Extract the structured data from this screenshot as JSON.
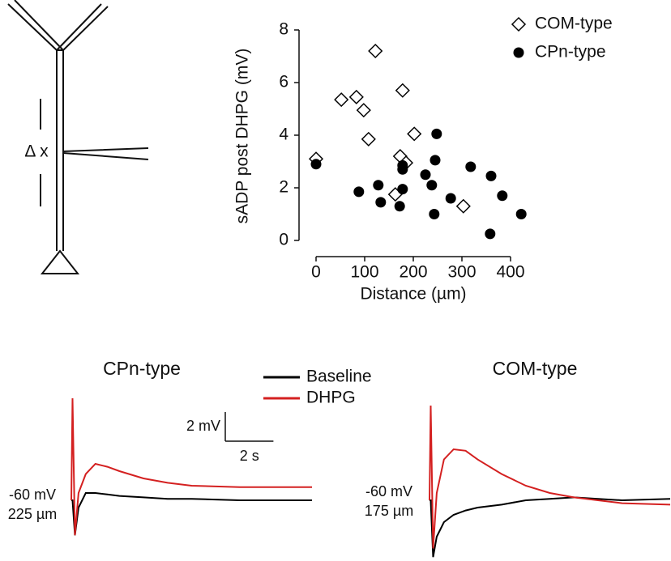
{
  "diagram": {
    "label": "Δ x"
  },
  "chart_data": [
    {
      "type": "scatter",
      "x_label": "Distance (µm)",
      "y_label": "sADP post DHPG (mV)",
      "xlim": [
        0,
        400
      ],
      "xticks": [
        0,
        100,
        200,
        300,
        400
      ],
      "ylim": [
        0,
        8
      ],
      "yticks": [
        0,
        2,
        4,
        6,
        8
      ],
      "legend": "top-right",
      "series": [
        {
          "name": "COM-type",
          "marker": "diamond",
          "color": "#000000",
          "x": [
            0,
            52,
            83,
            98,
            122,
            108,
            178,
            202,
            173,
            185,
            163,
            303
          ],
          "values": [
            3.1,
            5.35,
            5.45,
            4.95,
            7.2,
            3.85,
            5.7,
            4.05,
            3.2,
            2.95,
            1.75,
            1.3
          ]
        },
        {
          "name": "CPn-type",
          "marker": "circle",
          "color": "#000000",
          "x": [
            0,
            88,
            128,
            133,
            178,
            178,
            178,
            172,
            225,
            245,
            248,
            238,
            243,
            318,
            277,
            360,
            383,
            358,
            422
          ],
          "values": [
            2.9,
            1.85,
            2.1,
            1.45,
            2.85,
            2.7,
            1.95,
            1.3,
            2.5,
            3.05,
            4.05,
            2.1,
            1.0,
            2.8,
            1.6,
            2.45,
            1.7,
            0.25,
            1.0
          ]
        }
      ]
    },
    {
      "type": "trace",
      "title": "CPn-type",
      "annotations": [
        "-60 mV",
        "225 µm"
      ],
      "xlim": [
        0,
        10
      ],
      "ylim": [
        -4,
        7
      ],
      "scale_bar": {
        "y": {
          "value": 2,
          "label": "2 mV"
        },
        "x": {
          "value": 2,
          "label": "2 s"
        }
      },
      "x": [
        0,
        0.05,
        0.15,
        0.3,
        0.6,
        1,
        1.5,
        2,
        3,
        4,
        5,
        6,
        7,
        8,
        10
      ],
      "series": [
        {
          "name": "Baseline",
          "color": "#000000",
          "values": [
            0,
            0,
            -2.4,
            -0.5,
            0.5,
            0.5,
            0.4,
            0.3,
            0.2,
            0.1,
            0.1,
            0.05,
            0,
            0,
            0
          ]
        },
        {
          "name": "DHPG",
          "color": "#d42020",
          "values": [
            0,
            7,
            -2.4,
            0.5,
            1.8,
            2.5,
            2.3,
            2.0,
            1.5,
            1.2,
            1.0,
            0.95,
            0.9,
            0.9,
            0.9
          ]
        }
      ]
    },
    {
      "type": "trace",
      "title": "COM-type",
      "annotations": [
        "-60 mV",
        "175 µm"
      ],
      "xlim": [
        0,
        10
      ],
      "ylim": [
        -4,
        7
      ],
      "x": [
        0,
        0.05,
        0.15,
        0.3,
        0.6,
        1,
        1.5,
        2,
        3,
        4,
        5,
        6,
        7,
        8,
        10
      ],
      "series": [
        {
          "name": "Baseline",
          "color": "#000000",
          "values": [
            0,
            0,
            -3.9,
            -2.5,
            -1.5,
            -1,
            -0.7,
            -0.5,
            -0.3,
            0,
            0.1,
            0.2,
            0.1,
            0,
            0.1
          ]
        },
        {
          "name": "DHPG",
          "color": "#d42020",
          "values": [
            0,
            6.5,
            -3.3,
            0.5,
            2.8,
            3.5,
            3.4,
            2.8,
            1.8,
            1,
            0.5,
            0.2,
            0,
            -0.2,
            -0.3
          ]
        }
      ]
    }
  ]
}
